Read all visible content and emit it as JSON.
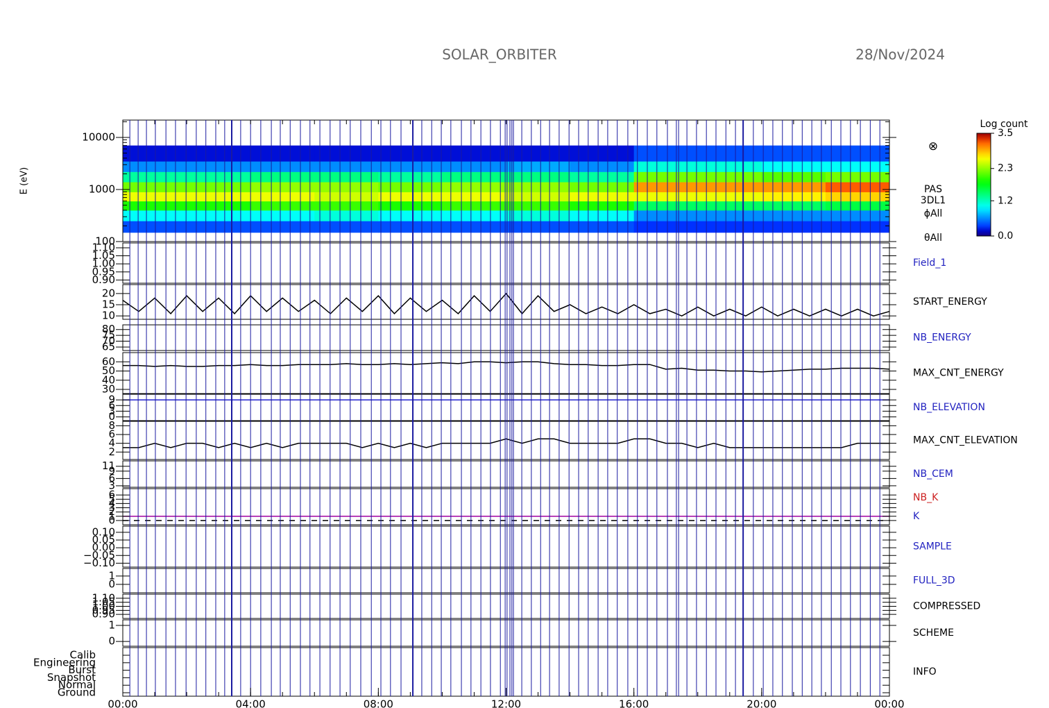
{
  "chart_data": {
    "type": "panels",
    "title": "SOLAR_ORBITER",
    "date": "28/Nov/2024",
    "xlim": [
      0,
      24
    ],
    "xticks": [
      {
        "value": 0,
        "label": "00:00"
      },
      {
        "value": 4,
        "label": "04:00"
      },
      {
        "value": 8,
        "label": "08:00"
      },
      {
        "value": 12,
        "label": "12:00"
      },
      {
        "value": 16,
        "label": "16:00"
      },
      {
        "value": 20,
        "label": "20:00"
      },
      {
        "value": 24,
        "label": "00:00"
      }
    ],
    "x": [
      0,
      0.5,
      1,
      1.5,
      2,
      2.5,
      3,
      3.5,
      4,
      4.5,
      5,
      5.5,
      6,
      6.5,
      7,
      7.5,
      8,
      8.5,
      9,
      9.5,
      10,
      10.5,
      11,
      11.5,
      12,
      12.5,
      13,
      13.5,
      14,
      14.5,
      15,
      15.5,
      16,
      16.5,
      17,
      17.5,
      18,
      18.5,
      19,
      19.5,
      20,
      20.5,
      21,
      21.5,
      22,
      22.5,
      23,
      23.5,
      24
    ],
    "event_color": "#1a1aa0",
    "events": [
      0.22,
      0.48,
      0.74,
      1.02,
      1.35,
      1.65,
      1.98,
      2.3,
      2.6,
      2.91,
      3.19,
      3.69,
      4.0,
      4.32,
      4.65,
      4.93,
      5.24,
      5.56,
      5.86,
      6.17,
      6.49,
      6.8,
      7.12,
      7.45,
      7.78,
      8.08,
      8.38,
      8.71,
      9.36,
      9.67,
      9.97,
      10.27,
      10.6,
      10.9,
      11.21,
      11.51,
      11.82,
      11.97,
      12.03,
      12.12,
      12.18,
      12.23,
      12.49,
      12.79,
      13.08,
      13.36,
      13.66,
      13.97,
      14.27,
      14.57,
      14.88,
      15.18,
      15.48,
      15.81,
      16.11,
      16.42,
      16.72,
      17.05,
      17.33,
      17.4,
      17.66,
      17.96,
      18.27,
      18.57,
      18.88,
      19.18,
      19.74,
      20.05,
      20.35,
      20.65,
      20.96,
      21.27,
      21.57,
      21.87,
      22.18,
      22.48,
      22.78,
      23.09,
      23.4,
      23.7
    ],
    "events_major": [
      3.41,
      9.08,
      19.42
    ],
    "panels": [
      {
        "type": "heatmap",
        "ylabel": "E (eV)",
        "log": true,
        "ylim": [
          100,
          21544
        ],
        "yticks": [
          100,
          1000,
          10000
        ],
        "xbins": [
          0,
          2,
          4,
          6,
          8,
          10,
          12,
          14,
          16,
          18,
          20,
          22,
          24
        ],
        "ybins": [
          150,
          250,
          400,
          600,
          900,
          1400,
          2200,
          3500,
          7000
        ],
        "z": [
          [
            0.4,
            0.4,
            0.4,
            0.4,
            0.4,
            0.4,
            0.4,
            0.4,
            0.3,
            0.3,
            0.3,
            0.3
          ],
          [
            1.0,
            1.0,
            1.0,
            1.1,
            1.0,
            1.0,
            1.1,
            1.0,
            0.6,
            0.6,
            0.6,
            0.6
          ],
          [
            1.9,
            1.9,
            2.0,
            2.0,
            1.9,
            2.0,
            2.0,
            1.9,
            1.5,
            1.5,
            1.5,
            1.6
          ],
          [
            2.6,
            2.6,
            2.6,
            2.5,
            2.6,
            2.6,
            2.5,
            2.6,
            2.6,
            2.6,
            2.7,
            2.8
          ],
          [
            2.2,
            2.2,
            2.3,
            2.3,
            2.2,
            2.3,
            2.3,
            2.2,
            3.0,
            3.0,
            3.0,
            3.2
          ],
          [
            1.3,
            1.3,
            1.4,
            1.4,
            1.3,
            1.4,
            1.4,
            1.3,
            2.2,
            2.2,
            2.1,
            2.2
          ],
          [
            0.6,
            0.6,
            0.6,
            0.6,
            0.6,
            0.6,
            0.7,
            0.6,
            1.1,
            1.1,
            1.0,
            1.0
          ],
          [
            0.2,
            0.2,
            0.2,
            0.2,
            0.2,
            0.2,
            0.2,
            0.2,
            0.4,
            0.4,
            0.4,
            0.4
          ]
        ],
        "zlim": [
          0,
          3.5
        ],
        "colormap": "rainbow",
        "colorbar_label": "Log count",
        "zticks": [
          {
            "value": 0,
            "label": "0.0"
          },
          {
            "value": 1.2,
            "label": "1.2"
          },
          {
            "value": 2.3,
            "label": "2.3"
          },
          {
            "value": 3.5,
            "label": "3.5"
          }
        ],
        "labels": [
          "PAS",
          "3DL1",
          "ϕAll",
          "θAll"
        ],
        "symbol": "⊗"
      },
      {
        "type": "line",
        "name": "Field_1",
        "name_color": "#2222c0",
        "ylim": [
          0.88,
          1.13
        ],
        "yticks": [
          {
            "value": 1.1,
            "label": "1.10"
          },
          1.05,
          {
            "value": 1,
            "label": "1.00"
          },
          0.95,
          {
            "value": 0.9,
            "label": "0.90"
          }
        ]
      },
      {
        "type": "line",
        "name": "START_ENERGY",
        "name_color": "#000000",
        "ylim": [
          8.5,
          24
        ],
        "yticks": [
          20,
          15,
          10
        ],
        "color": "#000000",
        "values": [
          17,
          12,
          18,
          11,
          19,
          12,
          18,
          11,
          19,
          12,
          18,
          12,
          17,
          11,
          18,
          12,
          19,
          11,
          18,
          12,
          17,
          11,
          19,
          12,
          20,
          11,
          19,
          12,
          15,
          11,
          14,
          11,
          15,
          11,
          13,
          10,
          14,
          10,
          13,
          10,
          14,
          10,
          13,
          10,
          13,
          10,
          13,
          10,
          12
        ]
      },
      {
        "type": "line",
        "name": "NB_ENERGY",
        "name_color": "#2222c0",
        "ylim": [
          62,
          84
        ],
        "yticks": [
          80,
          75,
          70,
          65
        ]
      },
      {
        "type": "line",
        "name": "MAX_CNT_ENERGY",
        "name_color": "#000000",
        "ylim": [
          25.5,
          70
        ],
        "yticks": [
          60,
          50,
          40,
          30
        ],
        "color": "#000000",
        "values": [
          56,
          56,
          55,
          56,
          55,
          55,
          56,
          56,
          57,
          56,
          56,
          57,
          57,
          57,
          58,
          57,
          57,
          58,
          57,
          58,
          59,
          58,
          60,
          60,
          59,
          60,
          60,
          58,
          57,
          57,
          56,
          56,
          57,
          57,
          52,
          53,
          51,
          51,
          50,
          50,
          49,
          50,
          51,
          52,
          52,
          53,
          53,
          53,
          52
        ]
      },
      {
        "type": "line",
        "name": "NB_ELEVATION",
        "name_color": "#2222c0",
        "ylim": [
          -2,
          12
        ],
        "yticks": [
          9,
          6,
          3,
          0
        ],
        "color": "#2222d0",
        "values": [
          9,
          9,
          9,
          9,
          9,
          9,
          9,
          9,
          9,
          9,
          9,
          9,
          9,
          9,
          9,
          9,
          9,
          9,
          9,
          9,
          9,
          9,
          9,
          9,
          9,
          9,
          9,
          9,
          9,
          9,
          9,
          9,
          9,
          9,
          9,
          9,
          9,
          9,
          9,
          9,
          9,
          9,
          9,
          9,
          9,
          9,
          9,
          9,
          9
        ]
      },
      {
        "type": "line",
        "name": "MAX_CNT_ELEVATION",
        "name_color": "#000000",
        "ylim": [
          0.3,
          9
        ],
        "yticks": [
          8,
          6,
          4,
          2
        ],
        "color": "#000000",
        "values": [
          3,
          3,
          4,
          3,
          4,
          4,
          3,
          4,
          3,
          4,
          3,
          4,
          4,
          4,
          4,
          3,
          4,
          3,
          4,
          3,
          4,
          4,
          4,
          4,
          5,
          4,
          5,
          5,
          4,
          4,
          4,
          4,
          5,
          5,
          4,
          4,
          3,
          4,
          3,
          3,
          3,
          3,
          3,
          3,
          3,
          3,
          4,
          4,
          4
        ]
      },
      {
        "type": "line",
        "name": "NB_CEM",
        "name_color": "#2222c0",
        "ylim": [
          2.4,
          13.2
        ],
        "yticks": [
          11,
          9,
          6,
          3
        ]
      },
      {
        "type": "line",
        "ylim": [
          -1,
          7.5
        ],
        "yticks": [
          6,
          5,
          4,
          3,
          2,
          1,
          0
        ],
        "series": [
          {
            "name": "NB_K",
            "name_color": "#cc2020",
            "color": "#a000a0",
            "values": [
              1,
              1,
              1,
              1,
              1,
              1,
              1,
              1,
              1,
              1,
              1,
              1,
              1,
              1,
              1,
              1,
              1,
              1,
              1,
              1,
              1,
              1,
              1,
              1,
              1,
              1,
              1,
              1,
              1,
              1,
              1,
              1,
              1,
              1,
              1,
              1,
              1,
              1,
              1,
              1,
              1,
              1,
              1,
              1,
              1,
              1,
              1,
              1,
              1
            ]
          },
          {
            "name": "K",
            "name_color": "#2222c0",
            "color": "#000000",
            "dash": true,
            "values": [
              0,
              0,
              0,
              0,
              0,
              0,
              0,
              0,
              0,
              0,
              0,
              0,
              0,
              0,
              0,
              0,
              0,
              0,
              0,
              0,
              0,
              0,
              0,
              0,
              0,
              0,
              0,
              0,
              0,
              0,
              0,
              0,
              0,
              0,
              0,
              0,
              0,
              0,
              0,
              0,
              0,
              0,
              0,
              0,
              0,
              0,
              0,
              0,
              0
            ]
          }
        ]
      },
      {
        "type": "line",
        "name": "SAMPLE",
        "name_color": "#2222c0",
        "ylim": [
          -0.125,
          0.14
        ],
        "yticks": [
          {
            "value": 0.1,
            "label": "0.10"
          },
          0.05,
          {
            "value": 0,
            "label": "0.00"
          },
          {
            "value": -0.05,
            "label": "−0.05"
          },
          {
            "value": -0.1,
            "label": "−0.10"
          }
        ]
      },
      {
        "type": "line",
        "name": "FULL_3D",
        "name_color": "#2222c0",
        "ylim": [
          -1,
          1.9
        ],
        "yticks": [
          1,
          0
        ]
      },
      {
        "type": "line",
        "name": "COMPRESSED",
        "name_color": "#000000",
        "ylim": [
          0.85,
          1.15
        ],
        "yticks": [
          {
            "value": 1.1,
            "label": "1.10"
          },
          1.05,
          {
            "value": 1,
            "label": "1.00"
          },
          0.95,
          {
            "value": 0.9,
            "label": "0.90"
          }
        ]
      },
      {
        "type": "line",
        "name": "SCHEME",
        "name_color": "#000000",
        "ylim": [
          -0.3,
          1.35
        ],
        "yticks": [
          1,
          0
        ]
      },
      {
        "type": "category",
        "name": "INFO",
        "name_color": "#000000",
        "categories": [
          "Calib",
          "Engineering",
          "Burst",
          "Snapshot",
          "Normal",
          "Ground"
        ]
      }
    ]
  }
}
